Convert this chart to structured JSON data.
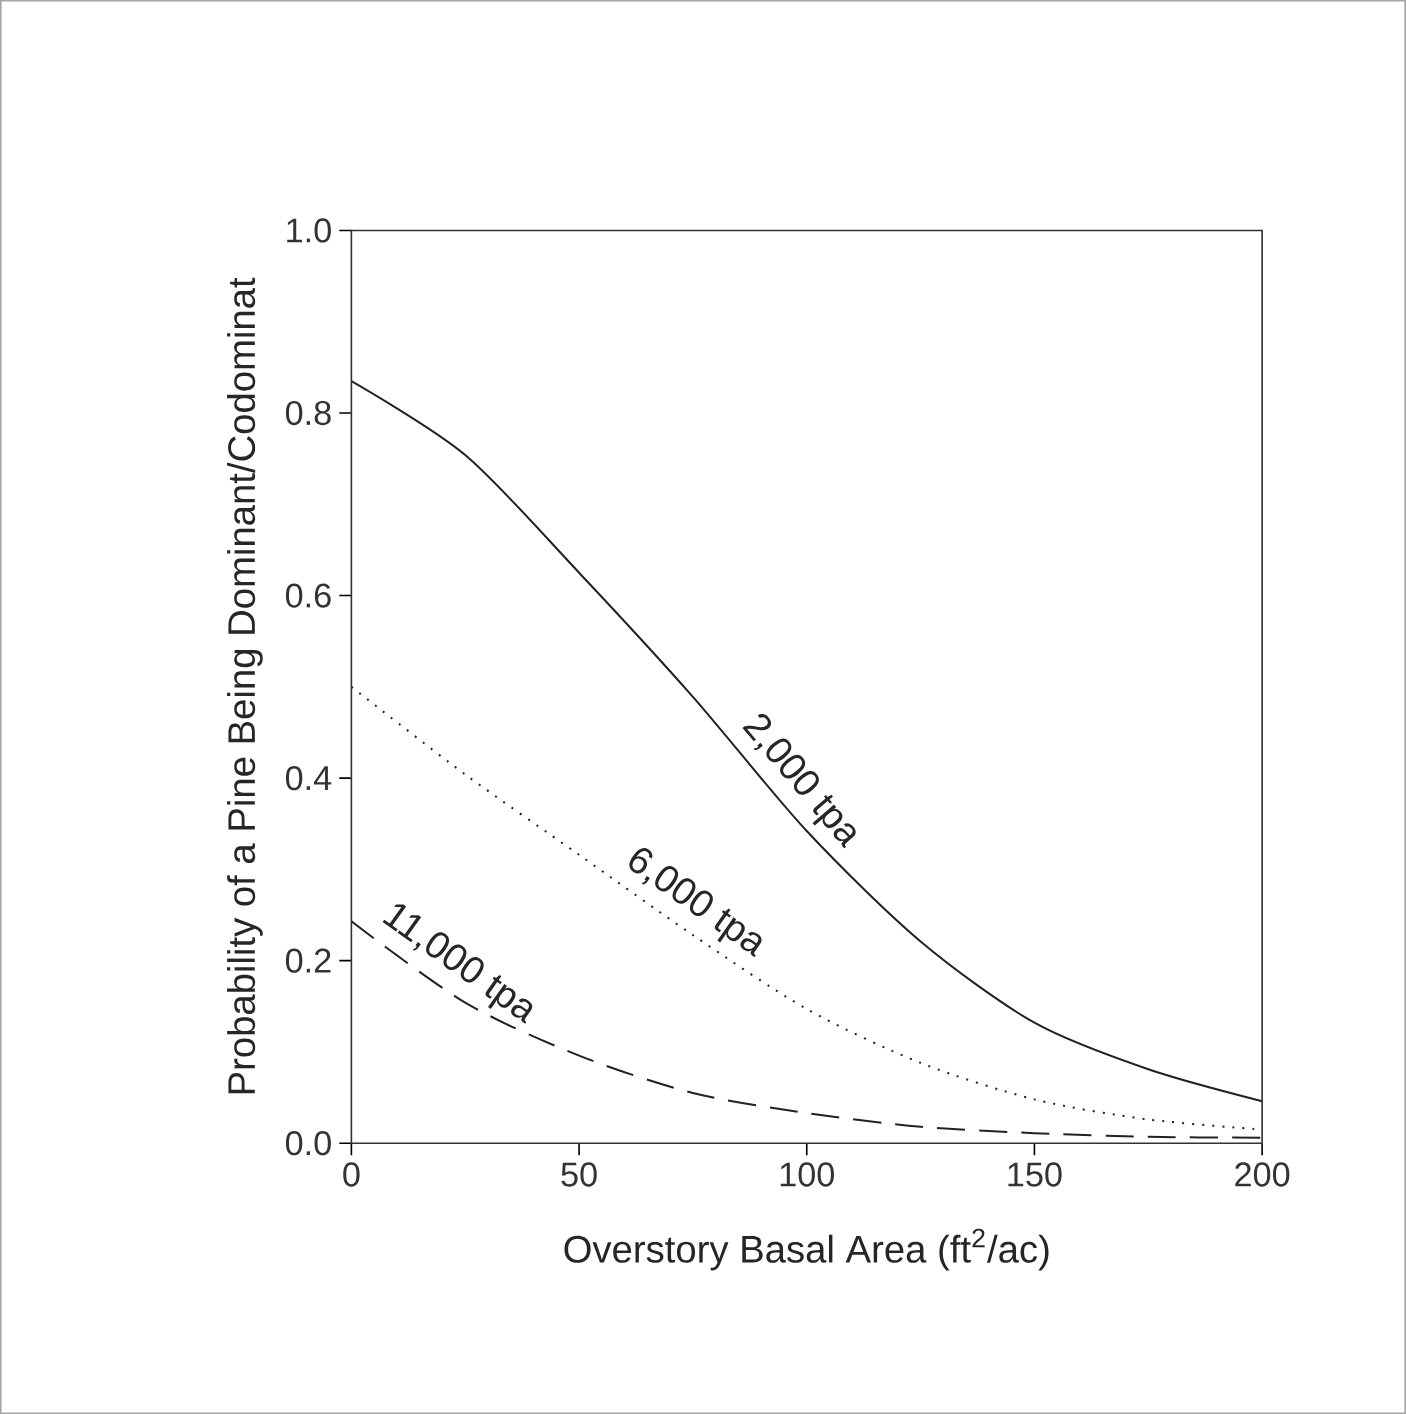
{
  "chart_data": {
    "type": "line",
    "xlabel": "Overstory Basal Area (ft$^{2}$/ac)",
    "ylabel": "Probability of a Pine Being Dominant/Codominat",
    "x": [
      0,
      25,
      50,
      75,
      100,
      125,
      150,
      175,
      200
    ],
    "series": [
      {
        "name": "2,000 tpa",
        "color": "#222222",
        "line_style": "solid",
        "values": [
          0.835,
          0.754,
          0.625,
          0.489,
          0.342,
          0.221,
          0.132,
          0.081,
          0.046
        ]
      },
      {
        "name": "6,000 tpa",
        "color": "#222222",
        "line_style": "dotted",
        "values": [
          0.5,
          0.404,
          0.316,
          0.228,
          0.147,
          0.088,
          0.048,
          0.026,
          0.015
        ]
      },
      {
        "name": "11,000 tpa",
        "color": "#222222",
        "line_style": "dashed",
        "values": [
          0.243,
          0.154,
          0.096,
          0.055,
          0.033,
          0.018,
          0.011,
          0.007,
          0.006
        ]
      }
    ],
    "xlim": [
      0,
      200
    ],
    "ylim": [
      0,
      1
    ],
    "xticks": [
      0,
      50,
      100,
      150,
      200
    ],
    "yticks": [
      {
        "value": 0,
        "label": "0.0"
      },
      0.2,
      0.4,
      0.6,
      0.8,
      {
        "value": 1,
        "label": "1.0"
      }
    ],
    "grid": false,
    "legend": false
  }
}
